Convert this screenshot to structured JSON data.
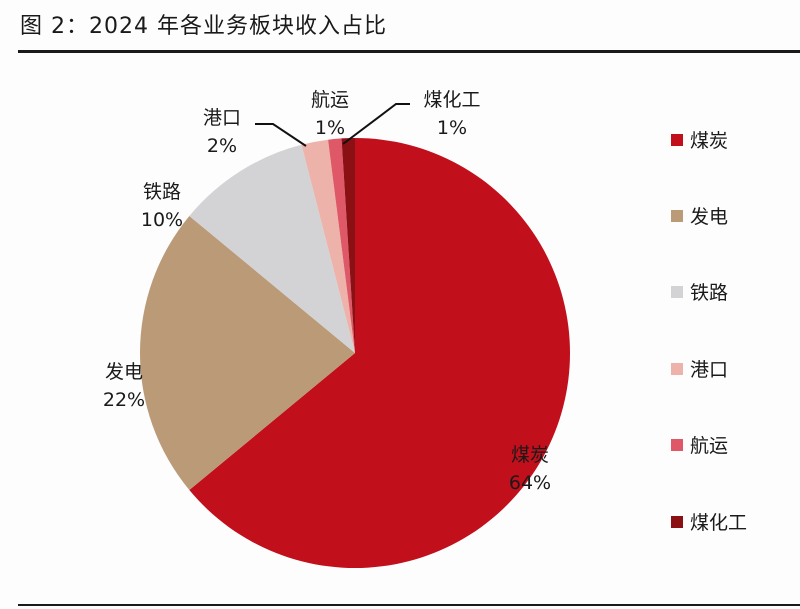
{
  "title": "图 2：2024 年各业务板块收入占比",
  "chart_data": {
    "type": "pie",
    "title": "图 2：2024 年各业务板块收入占比",
    "legend_position": "right",
    "start_angle": "12 o'clock, clockwise",
    "slices": [
      {
        "name": "煤炭",
        "value": 64,
        "label": "64%",
        "color": "#C10F1C"
      },
      {
        "name": "发电",
        "value": 22,
        "label": "22%",
        "color": "#BA9A77"
      },
      {
        "name": "铁路",
        "value": 10,
        "label": "10%",
        "color": "#D3D3D5"
      },
      {
        "name": "港口",
        "value": 2,
        "label": "2%",
        "color": "#EDB3AB"
      },
      {
        "name": "航运",
        "value": 1,
        "label": "1%",
        "color": "#DF5868"
      },
      {
        "name": "煤化工",
        "value": 1,
        "label": "1%",
        "color": "#8A1014"
      }
    ]
  }
}
